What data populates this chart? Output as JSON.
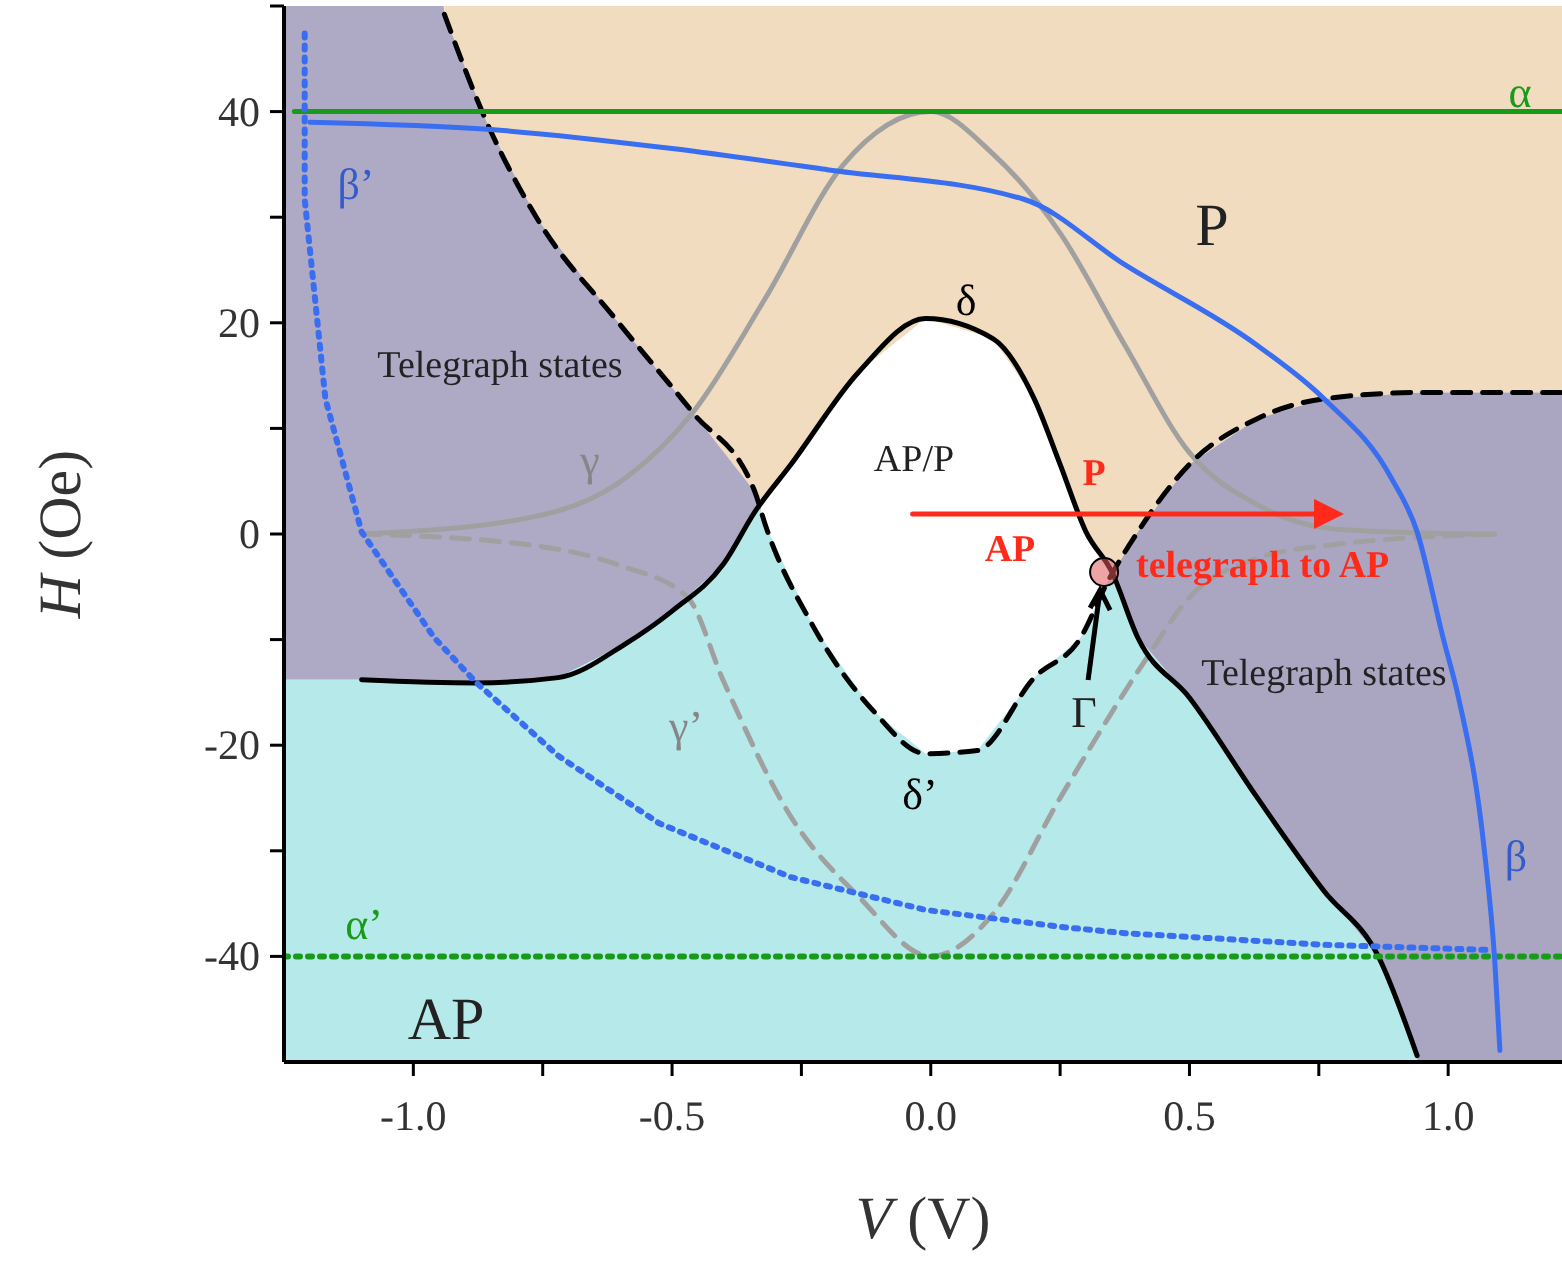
{
  "chart_data": {
    "type": "line",
    "xlabel": "V (V)",
    "ylabel": "H (Oe)",
    "xlim": [
      -1.25,
      1.22
    ],
    "ylim": [
      -50,
      50
    ],
    "xticks": [
      {
        "value": -1,
        "label": "-1.0"
      },
      {
        "value": -0.75,
        "label": null
      },
      {
        "value": -0.5,
        "label": "-0.5"
      },
      {
        "value": -0.25,
        "label": null
      },
      {
        "value": 0,
        "label": "0.0"
      },
      {
        "value": 0.25,
        "label": null
      },
      {
        "value": 0.5,
        "label": "0.5"
      },
      {
        "value": 0.75,
        "label": null
      },
      {
        "value": 1,
        "label": "1.0"
      }
    ],
    "yticks": [
      {
        "value": 50,
        "label": null
      },
      40,
      {
        "value": 30,
        "label": null
      },
      20,
      {
        "value": 10,
        "label": null
      },
      0,
      {
        "value": -10,
        "label": null
      },
      -20,
      {
        "value": -30,
        "label": null
      },
      -40
    ],
    "series": [
      {
        "name": "γ",
        "color": "#a0a0a0",
        "line_style": "solid",
        "x": [
          -1.1,
          -0.78,
          -0.59,
          -0.46,
          -0.32,
          -0.17,
          0,
          0.12,
          0.25,
          0.375,
          0.5,
          0.63,
          0.76,
          0.89,
          1.09
        ],
        "values": [
          0,
          1.5,
          5.3,
          11.5,
          22.3,
          34.9,
          40,
          36,
          28.5,
          17.9,
          7.7,
          2.8,
          0.6,
          0.2,
          0
        ]
      },
      {
        "name": "γ’",
        "color": "#a0a0a0",
        "line_style": "dashed",
        "x": [
          -1.1,
          -0.78,
          -0.6,
          -0.47,
          -0.4,
          -0.27,
          -0.14,
          0,
          0.12,
          0.25,
          0.41,
          0.5,
          0.63,
          0.78,
          1.1
        ],
        "values": [
          0,
          -1,
          -3,
          -6,
          -14,
          -26.8,
          -34.3,
          -40,
          -36,
          -25,
          -12.3,
          -6,
          -2.3,
          -1,
          0
        ]
      },
      {
        "name": "δ",
        "color": "#000000",
        "line_style": "solid",
        "x": [
          -1.1,
          -0.88,
          -0.72,
          -0.59,
          -0.5,
          -0.4,
          -0.34,
          -0.27,
          -0.14,
          -0.01,
          0.12,
          0.2,
          0.25,
          0.3,
          0.35,
          0.4,
          0.5,
          0.63,
          0.76,
          0.865,
          0.94
        ],
        "values": [
          -13.8,
          -14.1,
          -13.6,
          -10.4,
          -7.3,
          -2.8,
          2.1,
          6.6,
          15.3,
          20.4,
          18.5,
          12.8,
          6.6,
          0.2,
          -3.6,
          -9.8,
          -15.5,
          -24.9,
          -33.8,
          -40,
          -49.4
        ]
      },
      {
        "name": "δ’",
        "color": "#000000",
        "line_style": "dashed",
        "x": [
          -0.94,
          -0.86,
          -0.76,
          -0.61,
          -0.46,
          -0.34,
          -0.32,
          -0.23,
          -0.11,
          -0.01,
          0.09,
          0.2,
          0.29,
          0.34,
          0.4,
          0.5,
          0.63,
          0.76,
          0.95,
          1.22
        ],
        "values": [
          49.2,
          39.2,
          29.8,
          20.4,
          11.5,
          4,
          0.9,
          -8.5,
          -16.8,
          -20.8,
          -20.5,
          -13.6,
          -9.8,
          -4.7,
          0.2,
          6.6,
          10.9,
          12.8,
          13.4,
          13.4
        ]
      },
      {
        "name": "α",
        "color": "#1a9a1a",
        "line_style": "solid",
        "x": [
          -1.23,
          1.22
        ],
        "values": [
          40,
          40
        ]
      },
      {
        "name": "α’",
        "color": "#1a9a1a",
        "line_style": "dotted",
        "x": [
          -1.25,
          1.22
        ],
        "values": [
          -40,
          -40
        ]
      },
      {
        "name": "β",
        "color": "#3a6ef0",
        "line_style": "solid",
        "x": [
          -1.2,
          -0.85,
          -0.5,
          -0.2,
          0.18,
          0.375,
          0.63,
          0.76,
          0.89,
          0.94,
          0.99,
          1.02,
          1.07,
          1.09,
          1.1
        ],
        "values": [
          39,
          38.3,
          36.5,
          34.5,
          31.7,
          25.5,
          17.9,
          12.8,
          5.3,
          0.2,
          -9.8,
          -15.5,
          -30,
          -40.4,
          -48.9
        ]
      },
      {
        "name": "β’",
        "color": "#3a6ef0",
        "line_style": "dotted",
        "x": [
          -1.21,
          -1.21,
          -1.17,
          -1.1,
          -0.96,
          -0.88,
          -0.72,
          -0.525,
          -0.27,
          -0.01,
          0.25,
          0.375,
          0.76,
          1.085
        ],
        "values": [
          47.4,
          31.7,
          12.8,
          0.2,
          -9.8,
          -14,
          -21,
          -27.4,
          -32.5,
          -35.6,
          -37.2,
          -37.8,
          -38.9,
          -39.4
        ]
      },
      {
        "color": "#ff2a1a",
        "line_style": "solid",
        "x": [
          -0.035,
          0.76
        ],
        "values": [
          1.9,
          1.9
        ]
      },
      {
        "type": "scatter",
        "color": "#e05a5a",
        "marker": "circle",
        "x": [
          0.335
        ],
        "values": [
          -3.6
        ]
      }
    ],
    "annotations": [
      "P",
      "AP/P",
      "AP",
      "Telegraph states",
      "Telegraph states",
      {
        "text": "Γ",
        "x": 0.335,
        "y": -3.6
      },
      "P",
      "AP",
      "telegraph to AP"
    ]
  }
}
